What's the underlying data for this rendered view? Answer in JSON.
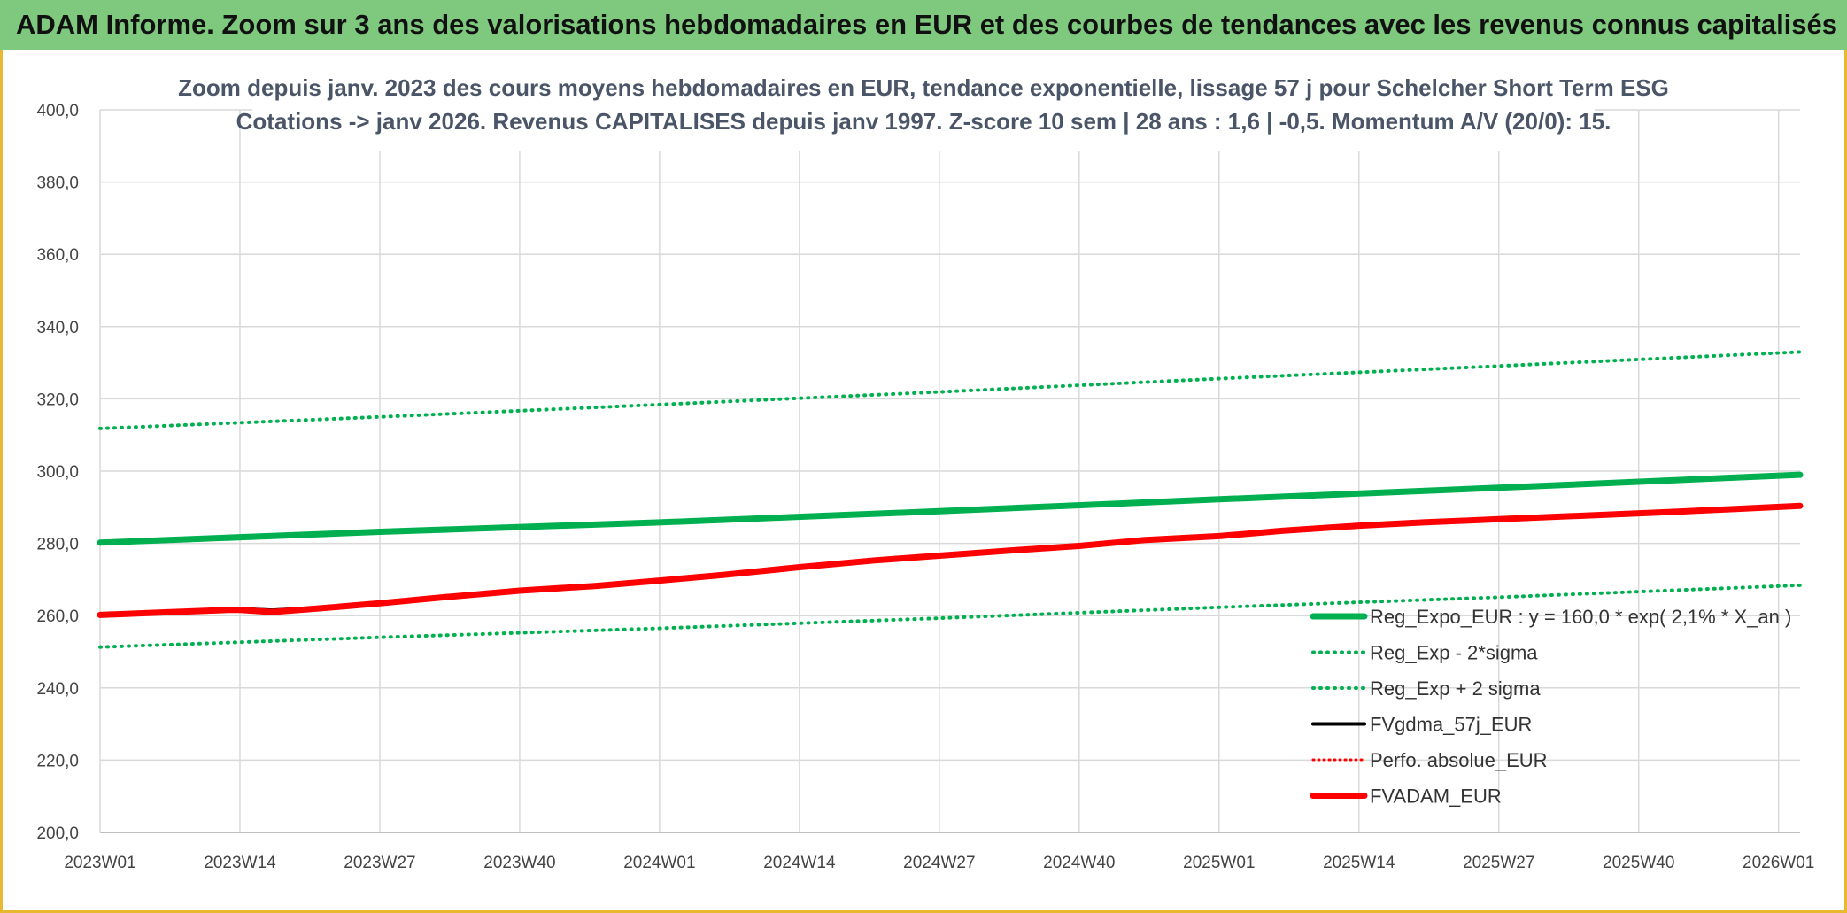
{
  "banner": {
    "title": "ADAM Informe. Zoom sur 3 ans des valorisations hebdomadaires en EUR et des courbes de tendances avec les revenus connus capitalisés"
  },
  "chart_data": {
    "type": "line",
    "title": "Zoom depuis janv. 2023 des cours moyens hebdomadaires en EUR, tendance exponentielle, lissage 57 j pour Schelcher Short Term ESG",
    "subtitle": "Cotations -> janv 2026. Revenus CAPITALISES depuis janv 1997. Z-score 10 sem | 28 ans : 1,6 | -0,5. Momentum A/V (20/0): 15.",
    "xlabel": "",
    "ylabel": "",
    "x_ticks": [
      "2023W01",
      "2023W14",
      "2023W27",
      "2023W40",
      "2024W01",
      "2024W14",
      "2024W27",
      "2024W40",
      "2025W01",
      "2025W14",
      "2025W27",
      "2025W40",
      "2026W01"
    ],
    "x_range": [
      0,
      158
    ],
    "ylim": [
      200,
      400
    ],
    "y_ticks": [
      "200,0",
      "220,0",
      "240,0",
      "260,0",
      "280,0",
      "300,0",
      "320,0",
      "340,0",
      "360,0",
      "380,0",
      "400,0"
    ],
    "grid": true,
    "legend_position": "bottom-right",
    "series": [
      {
        "name": "Reg_Expo_EUR : y = 160,0 * exp( 2,1% *  X_an )",
        "color": "#00b050",
        "style": "solid",
        "width": 7,
        "points": [
          [
            0,
            280.2
          ],
          [
            26,
            283.2
          ],
          [
            52,
            285.8
          ],
          [
            78,
            288.9
          ],
          [
            104,
            292.2
          ],
          [
            130,
            295.4
          ],
          [
            158,
            299.0
          ]
        ]
      },
      {
        "name": "Reg_Exp - 2*sigma",
        "color": "#00b050",
        "style": "dotted",
        "width": 4,
        "points": [
          [
            0,
            251.3
          ],
          [
            26,
            254.0
          ],
          [
            52,
            256.5
          ],
          [
            78,
            259.3
          ],
          [
            104,
            262.3
          ],
          [
            130,
            265.1
          ],
          [
            158,
            268.4
          ]
        ]
      },
      {
        "name": "Reg_Exp + 2 sigma",
        "color": "#00b050",
        "style": "dotted",
        "width": 4,
        "points": [
          [
            0,
            311.8
          ],
          [
            26,
            315.0
          ],
          [
            52,
            318.4
          ],
          [
            78,
            321.9
          ],
          [
            104,
            325.6
          ],
          [
            130,
            329.1
          ],
          [
            158,
            333.0
          ]
        ]
      },
      {
        "name": "FVgdma_57j_EUR",
        "color": "#000000",
        "style": "solid",
        "width": 4,
        "points": [
          [
            0,
            260.2
          ],
          [
            6,
            260.9
          ],
          [
            12,
            261.6
          ],
          [
            13,
            261.9
          ],
          [
            16,
            261.5
          ],
          [
            20,
            262.2
          ],
          [
            26,
            263.5
          ],
          [
            32,
            265.2
          ],
          [
            39,
            267.0
          ],
          [
            46,
            268.3
          ],
          [
            52,
            269.8
          ],
          [
            58,
            271.4
          ],
          [
            65,
            273.5
          ],
          [
            72,
            275.4
          ],
          [
            78,
            276.7
          ],
          [
            85,
            278.2
          ],
          [
            91,
            279.4
          ],
          [
            97,
            281.0
          ],
          [
            104,
            282.1
          ],
          [
            110,
            283.6
          ],
          [
            117,
            285.0
          ],
          [
            123,
            285.9
          ],
          [
            130,
            286.8
          ],
          [
            138,
            287.8
          ],
          [
            146,
            288.8
          ],
          [
            152,
            289.6
          ],
          [
            158,
            290.5
          ]
        ]
      },
      {
        "name": "Perfo. absolue_EUR",
        "color": "#ff0000",
        "style": "dotted",
        "width": 3,
        "points": [
          [
            0,
            260.2
          ],
          [
            6,
            260.9
          ],
          [
            12,
            261.6
          ],
          [
            13,
            261.9
          ],
          [
            16,
            261.2
          ],
          [
            20,
            262.0
          ],
          [
            26,
            263.5
          ],
          [
            32,
            265.2
          ],
          [
            39,
            267.0
          ],
          [
            46,
            268.3
          ],
          [
            52,
            269.8
          ],
          [
            58,
            271.4
          ],
          [
            65,
            273.5
          ],
          [
            72,
            275.4
          ],
          [
            78,
            276.7
          ],
          [
            85,
            278.2
          ],
          [
            91,
            279.4
          ],
          [
            97,
            281.0
          ],
          [
            104,
            282.1
          ],
          [
            110,
            283.6
          ],
          [
            117,
            285.0
          ],
          [
            123,
            285.9
          ],
          [
            130,
            286.8
          ],
          [
            138,
            287.8
          ],
          [
            146,
            288.8
          ],
          [
            152,
            289.6
          ],
          [
            158,
            290.5
          ]
        ]
      },
      {
        "name": "FVADAM_EUR",
        "color": "#ff0000",
        "style": "solid",
        "width": 7,
        "points": [
          [
            0,
            260.2
          ],
          [
            6,
            260.9
          ],
          [
            12,
            261.6
          ],
          [
            13,
            261.6
          ],
          [
            16,
            261.0
          ],
          [
            20,
            261.9
          ],
          [
            26,
            263.4
          ],
          [
            32,
            265.1
          ],
          [
            39,
            266.9
          ],
          [
            46,
            268.2
          ],
          [
            52,
            269.7
          ],
          [
            58,
            271.3
          ],
          [
            65,
            273.4
          ],
          [
            72,
            275.3
          ],
          [
            78,
            276.6
          ],
          [
            85,
            278.1
          ],
          [
            91,
            279.3
          ],
          [
            97,
            280.9
          ],
          [
            104,
            282.0
          ],
          [
            110,
            283.5
          ],
          [
            117,
            284.9
          ],
          [
            123,
            285.8
          ],
          [
            130,
            286.7
          ],
          [
            138,
            287.7
          ],
          [
            146,
            288.7
          ],
          [
            152,
            289.5
          ],
          [
            158,
            290.4
          ]
        ]
      }
    ]
  }
}
